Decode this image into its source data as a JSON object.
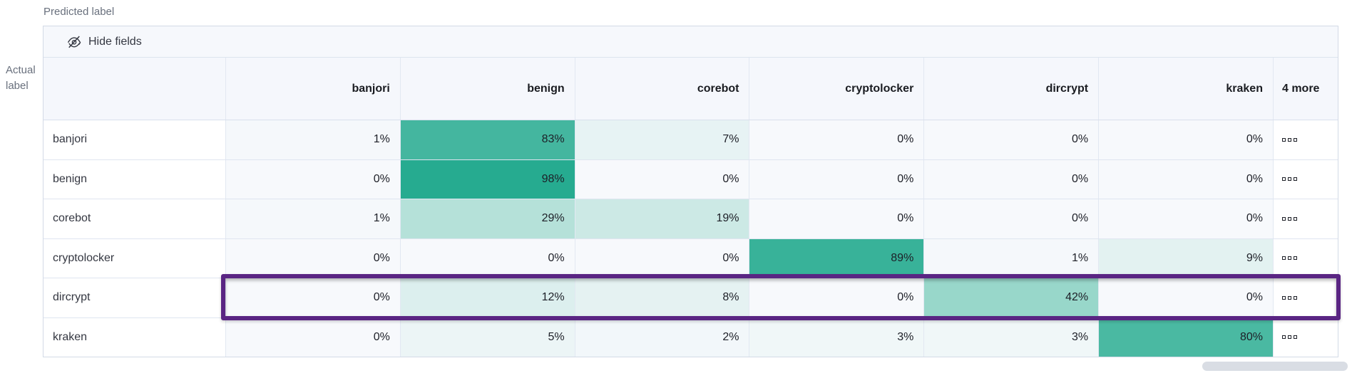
{
  "labels": {
    "predicted": "Predicted label",
    "actual": "Actual label"
  },
  "toolbar": {
    "hide_fields_label": "Hide fields",
    "icon": "eye-closed-icon"
  },
  "icons": {
    "toolbar_icon": "eye-closed-icon",
    "row_actions_icon": "boxes-horizontal-icon"
  },
  "chart_data": {
    "type": "heatmap",
    "description": "Confusion matrix of actual vs predicted labels, values in percent",
    "xlabel": "Predicted label",
    "ylabel": "Actual label",
    "columns": [
      "banjori",
      "benign",
      "corebot",
      "cryptolocker",
      "dircrypt",
      "kraken"
    ],
    "more_columns_label": "4 more",
    "rows": [
      {
        "label": "banjori",
        "values": [
          1,
          83,
          7,
          0,
          0,
          0
        ],
        "highlighted": false
      },
      {
        "label": "benign",
        "values": [
          0,
          98,
          0,
          0,
          0,
          0
        ],
        "highlighted": false
      },
      {
        "label": "corebot",
        "values": [
          1,
          29,
          19,
          0,
          0,
          0
        ],
        "highlighted": false
      },
      {
        "label": "cryptolocker",
        "values": [
          0,
          0,
          0,
          89,
          1,
          9
        ],
        "highlighted": false
      },
      {
        "label": "dircrypt",
        "values": [
          0,
          12,
          8,
          0,
          42,
          0
        ],
        "highlighted": true
      },
      {
        "label": "kraken",
        "values": [
          0,
          5,
          2,
          3,
          3,
          80
        ],
        "highlighted": false
      }
    ],
    "value_suffix": "%",
    "value_range": [
      0,
      100
    ],
    "colors": {
      "scale_min": "#f7f9fc",
      "scale_mid": "#86d0c0",
      "scale_max": "#22a98e",
      "highlight_border": "#5a2583"
    }
  }
}
